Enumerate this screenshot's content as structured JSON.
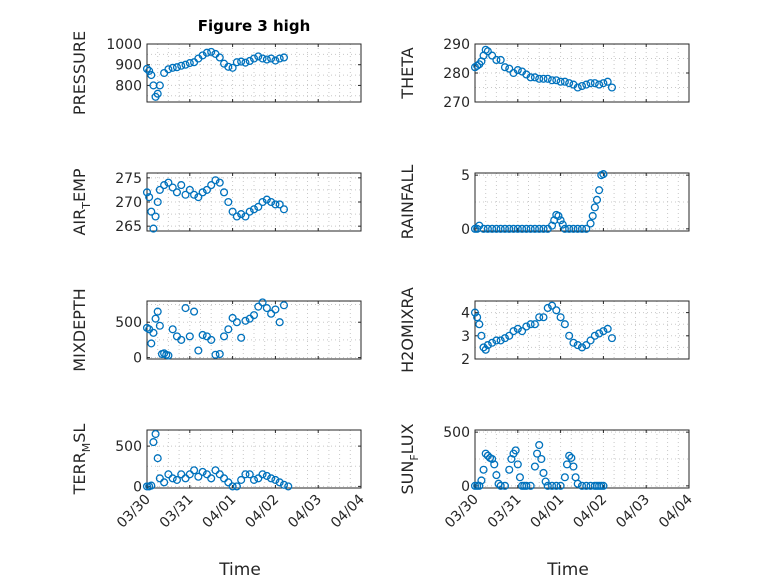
{
  "chart_data": [
    {
      "type": "scatter",
      "title": "Figure 3 high",
      "ylabel": "PRESSURE",
      "xlim": [
        "2017-03-30",
        "2017-04-04"
      ],
      "xticks": [
        "03/30",
        "03/31",
        "04/01",
        "04/02",
        "04/03",
        "04/04"
      ],
      "ylim": [
        720,
        1000
      ],
      "yticks": [
        800,
        900,
        1000
      ],
      "series": [
        {
          "x": [
            0.0,
            0.05,
            0.1,
            0.15,
            0.2,
            0.25,
            0.3,
            0.4,
            0.5,
            0.6,
            0.7,
            0.8,
            0.9,
            1.0,
            1.1,
            1.2,
            1.3,
            1.4,
            1.5,
            1.6,
            1.7,
            1.8,
            1.9,
            2.0,
            2.1,
            2.2,
            2.3,
            2.4,
            2.5,
            2.6,
            2.7,
            2.8,
            2.9,
            3.0,
            3.1,
            3.2
          ],
          "y": [
            880,
            870,
            850,
            800,
            745,
            760,
            800,
            860,
            878,
            885,
            888,
            895,
            900,
            908,
            912,
            930,
            945,
            958,
            962,
            952,
            935,
            905,
            890,
            885,
            912,
            915,
            910,
            918,
            930,
            940,
            930,
            925,
            930,
            920,
            930,
            935
          ]
        }
      ]
    },
    {
      "type": "scatter",
      "ylabel": "THETA",
      "xlim": [
        "2017-03-30",
        "2017-04-04"
      ],
      "xticks": [
        "03/30",
        "03/31",
        "04/01",
        "04/02",
        "04/03",
        "04/04"
      ],
      "ylim": [
        270,
        290
      ],
      "yticks": [
        270,
        280,
        290
      ],
      "series": [
        {
          "x": [
            0.0,
            0.05,
            0.1,
            0.15,
            0.2,
            0.25,
            0.3,
            0.4,
            0.5,
            0.6,
            0.7,
            0.8,
            0.9,
            1.0,
            1.1,
            1.2,
            1.3,
            1.4,
            1.5,
            1.6,
            1.7,
            1.8,
            1.9,
            2.0,
            2.1,
            2.2,
            2.3,
            2.4,
            2.5,
            2.6,
            2.7,
            2.8,
            2.9,
            3.0,
            3.1,
            3.2
          ],
          "y": [
            282,
            282.5,
            283,
            284,
            286,
            288,
            287.5,
            286,
            284.5,
            284.5,
            282,
            281.5,
            280,
            281,
            280.5,
            279.5,
            278.5,
            278.5,
            278,
            278,
            278,
            277.5,
            277.5,
            277,
            277,
            276.5,
            276,
            275,
            275.5,
            276,
            276.5,
            276.5,
            276,
            276.5,
            277,
            275
          ]
        }
      ]
    },
    {
      "type": "scatter",
      "ylabel": "AIR_TEMP",
      "xlim": [
        "2017-03-30",
        "2017-04-04"
      ],
      "xticks": [
        "03/30",
        "03/31",
        "04/01",
        "04/02",
        "04/03",
        "04/04"
      ],
      "ylim": [
        264,
        276
      ],
      "yticks": [
        265,
        270,
        275
      ],
      "series": [
        {
          "x": [
            0.0,
            0.05,
            0.1,
            0.15,
            0.2,
            0.25,
            0.3,
            0.4,
            0.5,
            0.6,
            0.7,
            0.8,
            0.9,
            1.0,
            1.1,
            1.2,
            1.3,
            1.4,
            1.5,
            1.6,
            1.7,
            1.8,
            1.9,
            2.0,
            2.1,
            2.2,
            2.3,
            2.4,
            2.5,
            2.6,
            2.7,
            2.8,
            2.9,
            3.0,
            3.1,
            3.2
          ],
          "y": [
            272,
            271,
            268,
            264.5,
            267,
            270,
            272.5,
            273.5,
            274,
            273,
            272,
            273.5,
            271.5,
            272.5,
            271.5,
            271,
            272,
            272.5,
            273.5,
            274.5,
            274,
            272,
            270,
            268,
            267,
            267.5,
            267,
            268,
            268.5,
            269,
            270,
            270.5,
            270,
            269.5,
            269.5,
            268.5
          ]
        }
      ]
    },
    {
      "type": "scatter",
      "ylabel": "RAINFALL",
      "xlim": [
        "2017-03-30",
        "2017-04-04"
      ],
      "xticks": [
        "03/30",
        "03/31",
        "04/01",
        "04/02",
        "04/03",
        "04/04"
      ],
      "ylim": [
        -0.2,
        5.2
      ],
      "yticks": [
        0,
        5
      ],
      "series": [
        {
          "x": [
            0.0,
            0.05,
            0.1,
            0.2,
            0.3,
            0.4,
            0.5,
            0.6,
            0.7,
            0.8,
            0.9,
            1.0,
            1.1,
            1.2,
            1.3,
            1.4,
            1.5,
            1.6,
            1.7,
            1.8,
            1.85,
            1.9,
            1.95,
            2.0,
            2.05,
            2.1,
            2.2,
            2.3,
            2.4,
            2.5,
            2.6,
            2.7,
            2.75,
            2.8,
            2.85,
            2.9,
            2.95,
            3.0
          ],
          "y": [
            0,
            0,
            0.3,
            0,
            0,
            0,
            0,
            0,
            0,
            0,
            0,
            0,
            0,
            0,
            0,
            0,
            0,
            0,
            0,
            0.3,
            0.8,
            1.3,
            1.2,
            0.8,
            0.4,
            0,
            0,
            0,
            0,
            0,
            0,
            0.5,
            1.2,
            2.0,
            2.7,
            3.6,
            5.0,
            5.1
          ]
        }
      ]
    },
    {
      "type": "scatter",
      "ylabel": "MIXDEPTH",
      "xlim": [
        "2017-03-30",
        "2017-04-04"
      ],
      "xticks": [
        "03/30",
        "03/31",
        "04/01",
        "04/02",
        "04/03",
        "04/04"
      ],
      "ylim": [
        -20,
        800
      ],
      "yticks": [
        0,
        500
      ],
      "series": [
        {
          "x": [
            0.0,
            0.05,
            0.1,
            0.15,
            0.2,
            0.25,
            0.3,
            0.35,
            0.4,
            0.45,
            0.5,
            0.6,
            0.7,
            0.8,
            0.9,
            1.0,
            1.1,
            1.2,
            1.3,
            1.4,
            1.5,
            1.6,
            1.7,
            1.8,
            1.9,
            2.0,
            2.1,
            2.2,
            2.3,
            2.4,
            2.5,
            2.6,
            2.7,
            2.8,
            2.9,
            3.0,
            3.1,
            3.2
          ],
          "y": [
            420,
            400,
            200,
            350,
            550,
            650,
            450,
            50,
            60,
            40,
            30,
            400,
            300,
            250,
            700,
            300,
            650,
            100,
            320,
            300,
            250,
            40,
            50,
            300,
            400,
            560,
            500,
            280,
            520,
            550,
            600,
            720,
            780,
            700,
            620,
            680,
            500,
            740
          ]
        }
      ]
    },
    {
      "type": "scatter",
      "ylabel": "H2OMIXRA",
      "xlim": [
        "2017-03-30",
        "2017-04-04"
      ],
      "xticks": [
        "03/30",
        "03/31",
        "04/01",
        "04/02",
        "04/03",
        "04/04"
      ],
      "ylim": [
        2,
        4.5
      ],
      "yticks": [
        2,
        3,
        4
      ],
      "series": [
        {
          "x": [
            0.0,
            0.05,
            0.1,
            0.15,
            0.2,
            0.25,
            0.3,
            0.4,
            0.5,
            0.6,
            0.7,
            0.8,
            0.9,
            1.0,
            1.1,
            1.2,
            1.3,
            1.4,
            1.5,
            1.6,
            1.7,
            1.8,
            1.9,
            2.0,
            2.1,
            2.2,
            2.3,
            2.4,
            2.5,
            2.6,
            2.7,
            2.8,
            2.9,
            3.0,
            3.1,
            3.2
          ],
          "y": [
            4.0,
            3.8,
            3.5,
            3.0,
            2.5,
            2.4,
            2.6,
            2.7,
            2.8,
            2.8,
            2.9,
            3.0,
            3.2,
            3.3,
            3.2,
            3.4,
            3.5,
            3.5,
            3.8,
            3.8,
            4.2,
            4.3,
            4.1,
            3.8,
            3.5,
            3.0,
            2.7,
            2.6,
            2.5,
            2.6,
            2.8,
            3.0,
            3.1,
            3.2,
            3.3,
            2.9
          ]
        }
      ]
    },
    {
      "type": "scatter",
      "ylabel": "TERR_MSL",
      "xlim": [
        "2017-03-30",
        "2017-04-04"
      ],
      "xticks": [
        "03/30",
        "03/31",
        "04/01",
        "04/02",
        "04/03",
        "04/04"
      ],
      "ylim": [
        -20,
        700
      ],
      "yticks": [
        0,
        500
      ],
      "series": [
        {
          "x": [
            0.0,
            0.05,
            0.1,
            0.15,
            0.2,
            0.25,
            0.3,
            0.4,
            0.5,
            0.6,
            0.7,
            0.8,
            0.9,
            1.0,
            1.1,
            1.2,
            1.3,
            1.4,
            1.5,
            1.6,
            1.7,
            1.8,
            1.9,
            2.0,
            2.1,
            2.2,
            2.3,
            2.4,
            2.5,
            2.6,
            2.7,
            2.8,
            2.9,
            3.0,
            3.1,
            3.2,
            3.3
          ],
          "y": [
            0,
            0,
            10,
            550,
            650,
            350,
            100,
            50,
            150,
            100,
            80,
            150,
            100,
            150,
            200,
            120,
            180,
            150,
            100,
            200,
            150,
            100,
            50,
            0,
            0,
            80,
            150,
            150,
            80,
            100,
            150,
            130,
            100,
            80,
            50,
            20,
            0
          ]
        }
      ]
    },
    {
      "type": "scatter",
      "ylabel": "SUN_FLUX",
      "xlim": [
        "2017-03-30",
        "2017-04-04"
      ],
      "xticks": [
        "03/30",
        "03/31",
        "04/01",
        "04/02",
        "04/03",
        "04/04"
      ],
      "ylim": [
        -20,
        520
      ],
      "yticks": [
        0,
        500
      ],
      "series": [
        {
          "x": [
            0.0,
            0.05,
            0.1,
            0.15,
            0.2,
            0.25,
            0.3,
            0.35,
            0.4,
            0.45,
            0.5,
            0.55,
            0.6,
            0.7,
            0.8,
            0.85,
            0.9,
            0.95,
            1.0,
            1.05,
            1.1,
            1.15,
            1.2,
            1.3,
            1.4,
            1.45,
            1.5,
            1.55,
            1.6,
            1.65,
            1.7,
            1.8,
            1.9,
            2.0,
            2.1,
            2.15,
            2.2,
            2.25,
            2.3,
            2.35,
            2.4,
            2.5,
            2.6,
            2.7,
            2.8,
            2.85,
            2.9,
            2.95,
            3.0
          ],
          "y": [
            0,
            0,
            0,
            50,
            150,
            300,
            280,
            260,
            250,
            200,
            100,
            20,
            0,
            0,
            150,
            250,
            300,
            330,
            200,
            80,
            0,
            0,
            0,
            0,
            180,
            300,
            380,
            250,
            120,
            40,
            0,
            0,
            0,
            0,
            80,
            200,
            280,
            260,
            180,
            80,
            20,
            0,
            0,
            0,
            0,
            0,
            0,
            0,
            0
          ]
        }
      ]
    }
  ]
}
